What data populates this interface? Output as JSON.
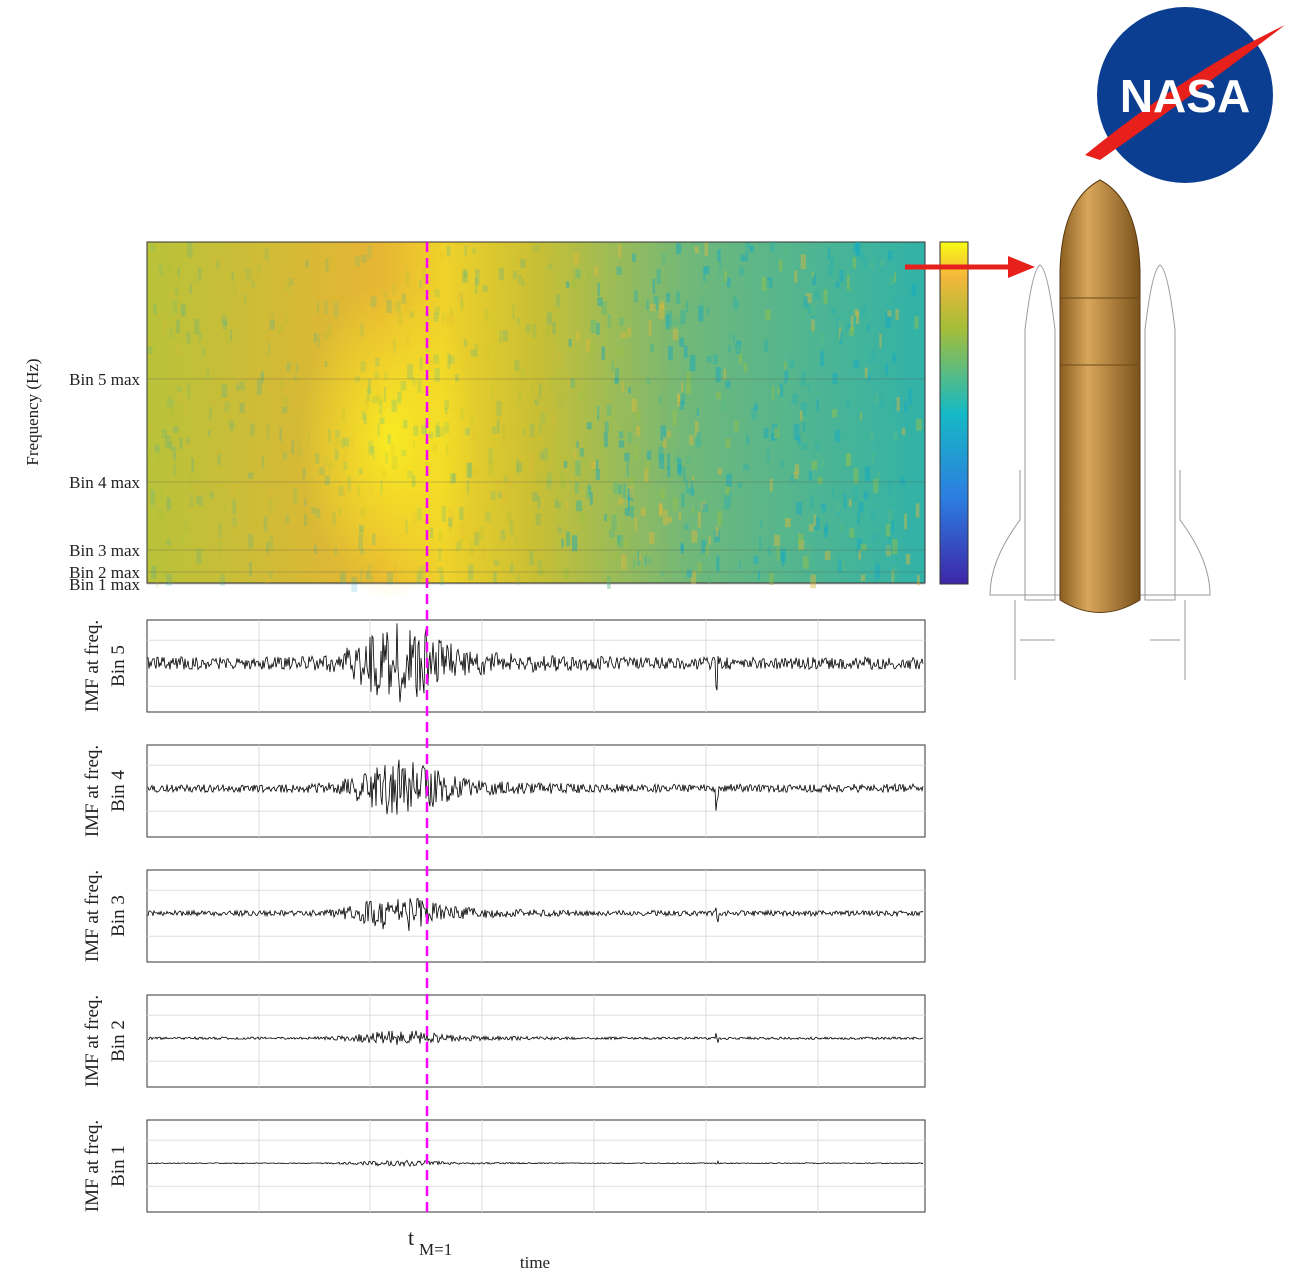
{
  "spectrogram": {
    "ylabel": "Frequency (Hz)",
    "yticks": [
      "Bin 5 max",
      "Bin 4 max",
      "Bin 3 max",
      "Bin 2 max",
      "Bin 1 max"
    ]
  },
  "panels": [
    {
      "line1": "IMF at freq.",
      "line2": "Bin 5"
    },
    {
      "line1": "IMF at freq.",
      "line2": "Bin 4"
    },
    {
      "line1": "IMF at freq.",
      "line2": "Bin 3"
    },
    {
      "line1": "IMF at freq.",
      "line2": "Bin 2"
    },
    {
      "line1": "IMF at freq.",
      "line2": "Bin 1"
    }
  ],
  "marker": {
    "label": "t",
    "subscript": "M=1"
  },
  "xlabel": "time",
  "logo": "NASA"
}
